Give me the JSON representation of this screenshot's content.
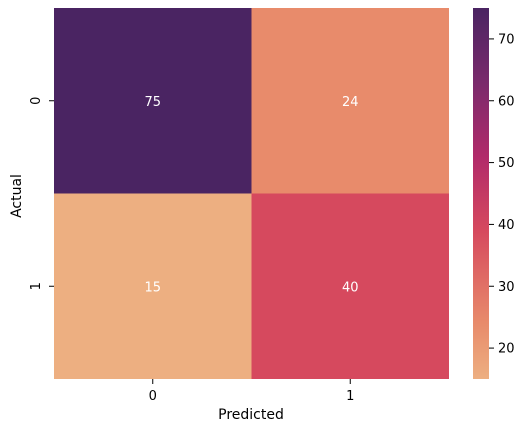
{
  "chart_data": {
    "type": "heatmap",
    "title": "",
    "xlabel": "Predicted",
    "ylabel": "Actual",
    "x_categories": [
      "0",
      "1"
    ],
    "y_categories": [
      "0",
      "1"
    ],
    "values": [
      [
        75,
        24
      ],
      [
        15,
        40
      ]
    ],
    "annotations": [
      [
        "75",
        "24"
      ],
      [
        "15",
        "40"
      ]
    ],
    "colormap": "flare",
    "colorbar": {
      "vmin": 15,
      "vmax": 75,
      "ticks": [
        20,
        30,
        40,
        50,
        60,
        70
      ]
    },
    "cell_colors": [
      [
        "#4a2462",
        "#e88b6b"
      ],
      [
        "#edaf81",
        "#d6495e"
      ]
    ]
  }
}
